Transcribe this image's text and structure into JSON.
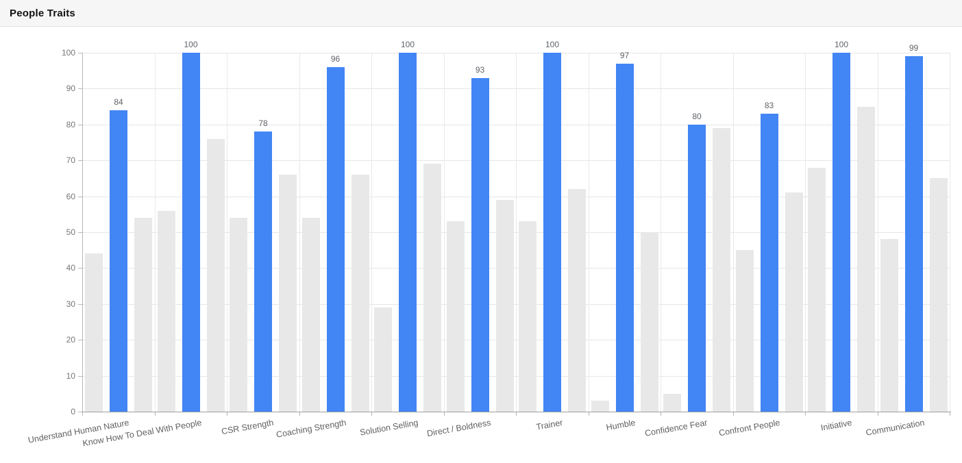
{
  "header": {
    "title": "People Traits"
  },
  "chart_data": {
    "type": "bar",
    "title": "People Traits",
    "categories": [
      "Understand Human Nature",
      "Know How To Deal With People",
      "CSR Strength",
      "Coaching Strength",
      "Solution Selling",
      "Direct / Boldness",
      "Trainer",
      "Humble",
      "Confidence Fear",
      "Confront People",
      "Initiative",
      "Communication"
    ],
    "series": [
      {
        "id": "left-gray",
        "color": "#e8e8e8",
        "data_labels": false,
        "values": [
          44,
          56,
          54,
          54,
          29,
          53,
          53,
          3,
          5,
          45,
          68,
          48
        ]
      },
      {
        "id": "blue",
        "color": "#4285f4",
        "data_labels": true,
        "values": [
          84,
          100,
          78,
          96,
          100,
          93,
          100,
          97,
          80,
          83,
          100,
          99
        ]
      },
      {
        "id": "right-gray",
        "color": "#e8e8e8",
        "data_labels": false,
        "values": [
          54,
          76,
          66,
          66,
          69,
          59,
          62,
          50,
          79,
          61,
          85,
          65
        ]
      }
    ],
    "ylabel": "",
    "xlabel": "",
    "ylim": [
      0,
      100
    ],
    "yticks": [
      0,
      10,
      20,
      30,
      40,
      50,
      60,
      70,
      80,
      90,
      100
    ],
    "grid": true,
    "legend": "none"
  },
  "colors": {
    "bar_blue": "#4285f4",
    "bar_gray": "#e8e8e8",
    "grid": "#e6e6e6",
    "header_bg": "#f6f6f6",
    "value_label": "#5f6368",
    "axis_label": "#616161"
  }
}
